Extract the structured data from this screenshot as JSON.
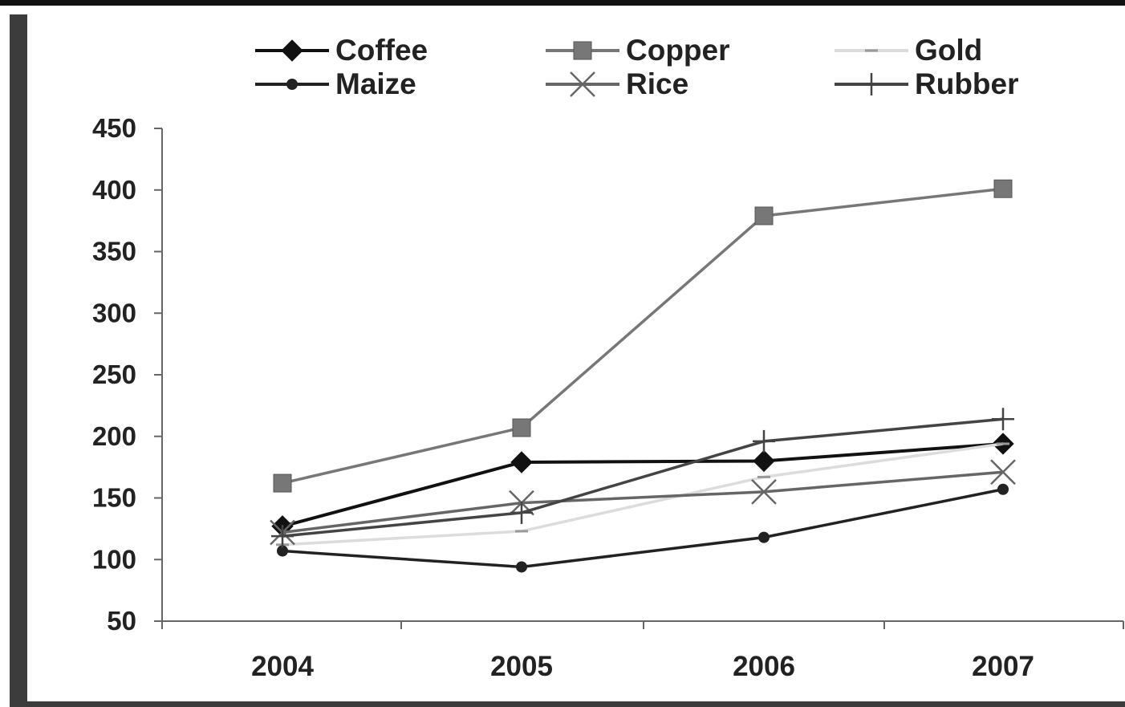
{
  "chart_data": {
    "type": "line",
    "categories": [
      "2004",
      "2005",
      "2006",
      "2007"
    ],
    "series": [
      {
        "name": "Coffee",
        "values": [
          127,
          179,
          180,
          194
        ],
        "color": "#111111",
        "marker": "diamond"
      },
      {
        "name": "Copper",
        "values": [
          162,
          207,
          379,
          401
        ],
        "color": "#777777",
        "marker": "square"
      },
      {
        "name": "Gold",
        "values": [
          112,
          123,
          167,
          194
        ],
        "color": "#dcdcdc",
        "marker": "dash"
      },
      {
        "name": "Maize",
        "values": [
          107,
          94,
          118,
          157
        ],
        "color": "#222222",
        "marker": "circle"
      },
      {
        "name": "Rice",
        "values": [
          122,
          146,
          155,
          171
        ],
        "color": "#666666",
        "marker": "x"
      },
      {
        "name": "Rubber",
        "values": [
          119,
          138,
          196,
          214
        ],
        "color": "#444444",
        "marker": "plus"
      }
    ],
    "yticks": [
      "50",
      "100",
      "150",
      "200",
      "250",
      "300",
      "350",
      "400",
      "450"
    ],
    "ylim": [
      50,
      450
    ],
    "legend": "top",
    "grid": false
  }
}
